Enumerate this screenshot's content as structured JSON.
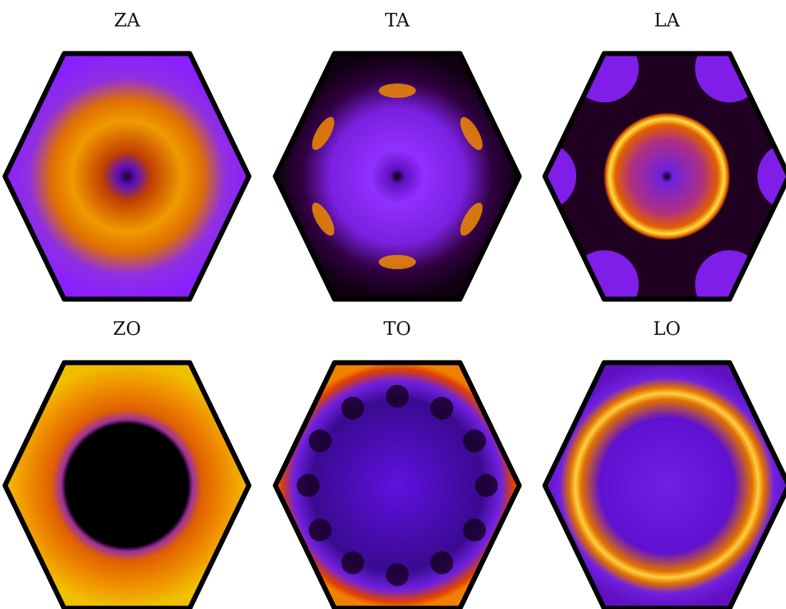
{
  "panels": [
    {
      "title": "ZA"
    },
    {
      "title": "TA"
    },
    {
      "title": "LA"
    },
    {
      "title": "ZO"
    },
    {
      "title": "TO"
    },
    {
      "title": "LO"
    }
  ]
}
